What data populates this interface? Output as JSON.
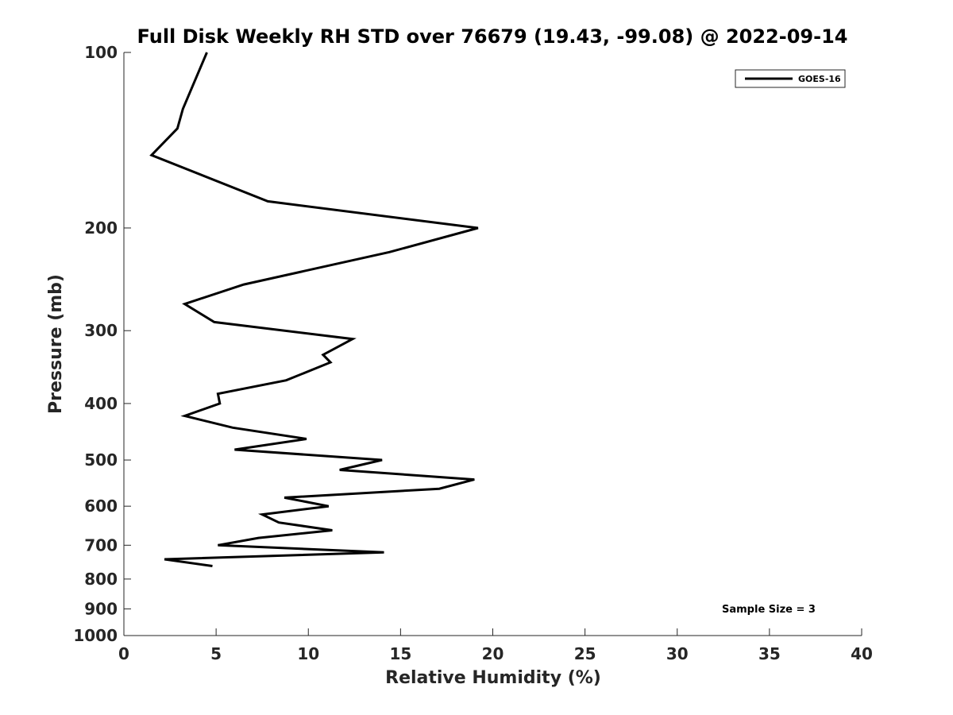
{
  "chart_data": {
    "type": "line",
    "title": "Full Disk Weekly RH STD over 76679 (19.43, -99.08) @ 2022-09-14",
    "xlabel": "Relative Humidity (%)",
    "ylabel": "Pressure (mb)",
    "xlim": [
      0,
      40
    ],
    "ylim": [
      100,
      1000
    ],
    "yscale": "log",
    "y_inverted": true,
    "xticks": [
      0,
      5,
      10,
      15,
      20,
      25,
      30,
      35,
      40
    ],
    "yticks": [
      100,
      200,
      300,
      400,
      500,
      600,
      700,
      800,
      900,
      1000
    ],
    "legend_position": "top-right",
    "annotation": "Sample Size = 3",
    "series": [
      {
        "name": "GOES-16",
        "color": "#000000",
        "x": [
          4.5,
          3.2,
          2.9,
          1.5,
          7.8,
          19.2,
          14.4,
          6.5,
          3.3,
          4.9,
          12.4,
          10.8,
          11.2,
          8.8,
          5.1,
          5.2,
          3.3,
          5.9,
          9.9,
          6.0,
          14.0,
          11.7,
          19.0,
          17.1,
          8.7,
          11.1,
          7.5,
          8.4,
          11.3,
          7.3,
          5.1,
          14.1,
          2.2,
          4.8
        ],
        "y": [
          100,
          125,
          135,
          150,
          180,
          200,
          220,
          250,
          270,
          290,
          310,
          330,
          340,
          365,
          385,
          400,
          420,
          440,
          460,
          480,
          500,
          520,
          540,
          560,
          580,
          600,
          620,
          640,
          660,
          680,
          700,
          720,
          740,
          760
        ]
      }
    ]
  }
}
